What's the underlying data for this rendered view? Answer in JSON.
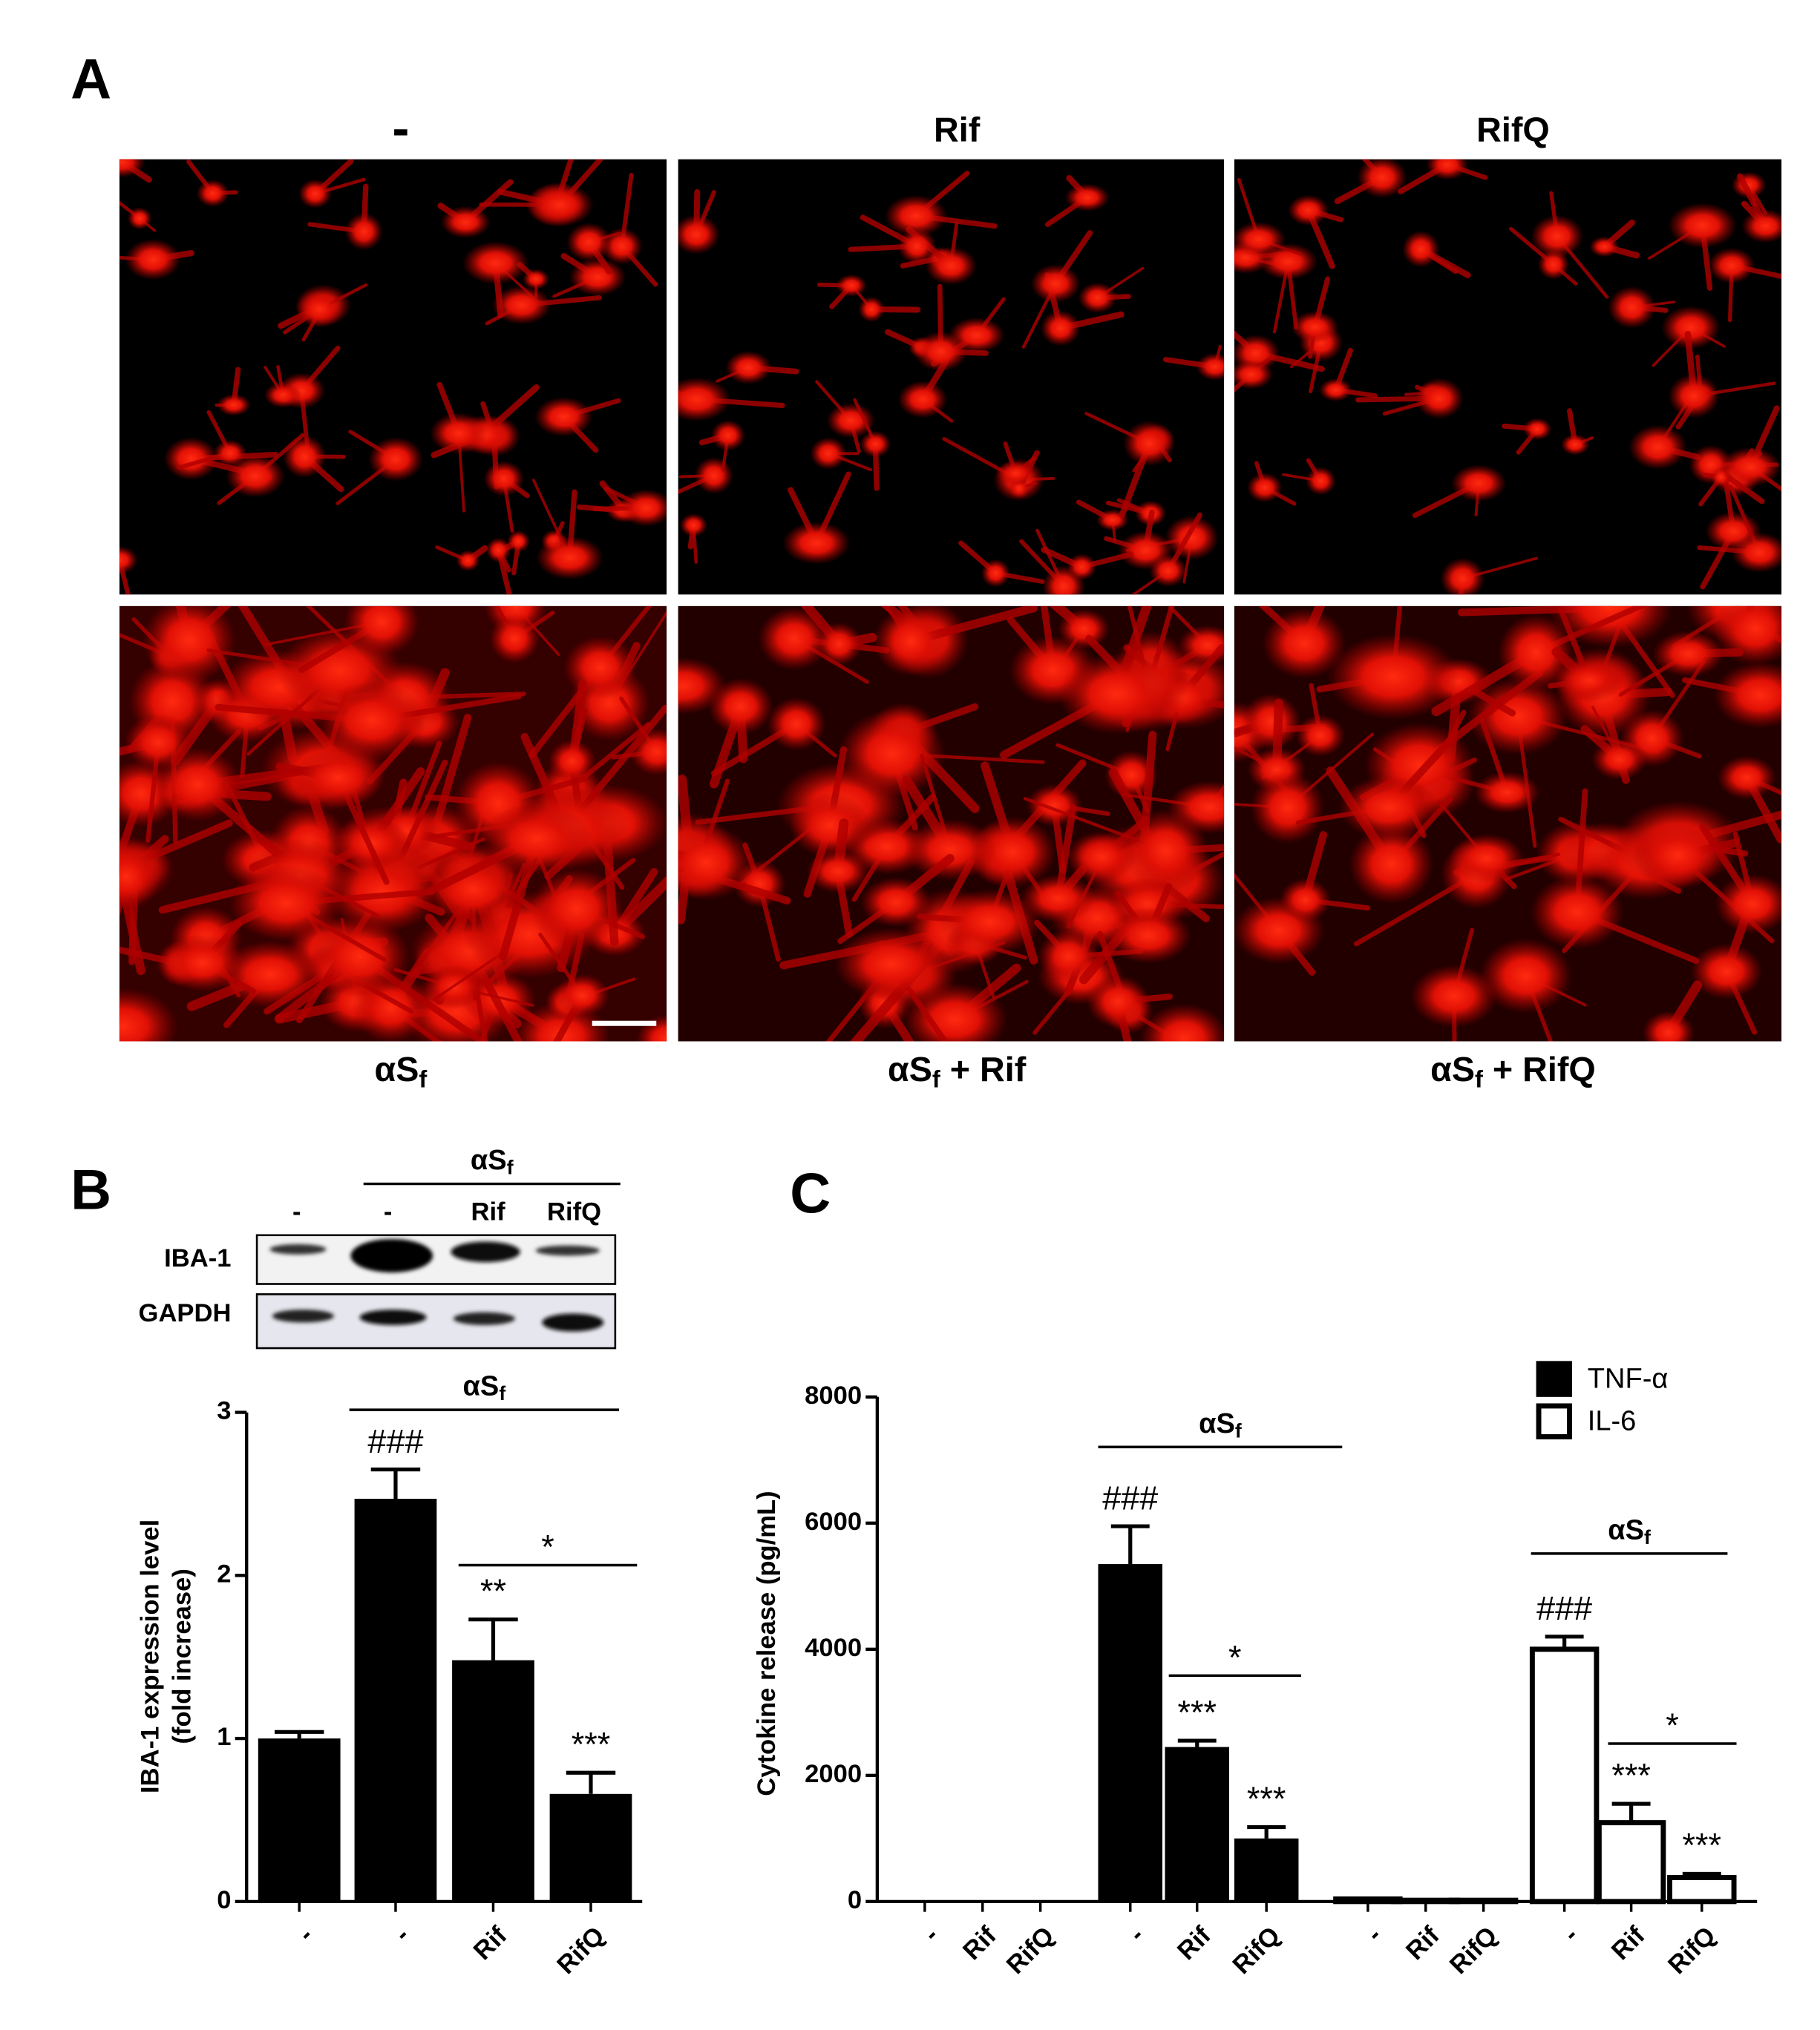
{
  "panel_a": {
    "label": "A",
    "columns": [
      "-",
      "Rif",
      "RifQ"
    ],
    "row_labels": [
      {
        "base": "αS",
        "sub": "f"
      },
      {
        "base": "αS",
        "sub": "f",
        "rest": " + Rif"
      },
      {
        "base": "αS",
        "sub": "f",
        "rest": " + RifQ"
      }
    ]
  },
  "panel_b": {
    "label": "B",
    "blot": {
      "group_label": {
        "base": "αS",
        "sub": "f"
      },
      "lanes": [
        "-",
        "-",
        "Rif",
        "RifQ"
      ],
      "rows": [
        "IBA-1",
        "GAPDH"
      ]
    }
  },
  "panel_c": {
    "label": "C"
  },
  "chart_data": [
    {
      "type": "bar",
      "y_label": [
        "IBA-1 expression level",
        "(fold increase)"
      ],
      "categories": [
        "-",
        "-",
        "Rif",
        "RifQ"
      ],
      "values": [
        1.0,
        2.47,
        1.48,
        0.66
      ],
      "errors": [
        0.04,
        0.18,
        0.25,
        0.13
      ],
      "color": "#000000",
      "ylim": [
        0,
        3
      ],
      "yticks": [
        0,
        1,
        2,
        3
      ],
      "bar_labels": [
        null,
        "###",
        "**",
        "***"
      ],
      "group_labels": [
        {
          "base": "αS",
          "sub": "f"
        }
      ],
      "comparison_labels": [
        "*"
      ]
    },
    {
      "type": "bar",
      "y_label": [
        "Cytokine release (pg/mL)"
      ],
      "categories": [
        "-",
        "Rif",
        "RifQ",
        "-",
        "Rif",
        "RifQ",
        "-",
        "Rif",
        "RifQ",
        "-",
        "Rif",
        "RifQ"
      ],
      "series": [
        {
          "name": "TNF-α",
          "color": "#000000",
          "values": [
            20,
            20,
            20,
            5350,
            2450,
            1000,
            null,
            null,
            null,
            null,
            null,
            null
          ],
          "errors": [
            null,
            null,
            null,
            600,
            100,
            180,
            null,
            null,
            null,
            null,
            null,
            null
          ]
        },
        {
          "name": "IL-6",
          "color": "#ffffff",
          "values": [
            null,
            null,
            null,
            null,
            null,
            null,
            40,
            20,
            20,
            4000,
            1250,
            380
          ],
          "errors": [
            null,
            null,
            null,
            null,
            null,
            null,
            null,
            null,
            null,
            200,
            300,
            60
          ]
        }
      ],
      "ylim": [
        0,
        8000
      ],
      "yticks": [
        0,
        2000,
        4000,
        6000,
        8000
      ],
      "bar_labels": [
        null,
        null,
        null,
        "###",
        "***",
        "***",
        null,
        null,
        null,
        "###",
        "***",
        "***"
      ],
      "group_labels": [
        {
          "base": "αS",
          "sub": "f"
        },
        {
          "base": "αS",
          "sub": "f"
        }
      ],
      "comparison_labels": [
        "*",
        "*"
      ]
    }
  ]
}
